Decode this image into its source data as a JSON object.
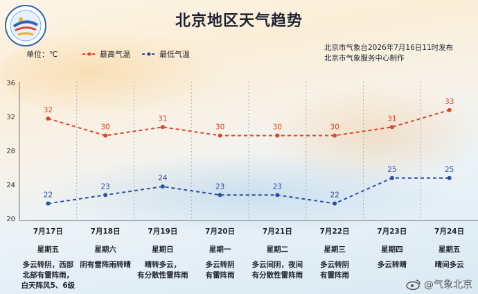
{
  "title": "北京地区天气趋势",
  "unit_label": "单位：℃",
  "legend": {
    "high": "最高气温",
    "low": "最低气温"
  },
  "publisher": {
    "line1": "北京市气象台2026年7月16日11时发布",
    "line2": "北京市气象服务中心制作"
  },
  "watermark": "@气象北京",
  "colors": {
    "high": "#e0452a",
    "low": "#2d4fa3"
  },
  "chart_data": {
    "type": "line",
    "title": "北京地区天气趋势",
    "ylabel": "单位：℃",
    "ylim": [
      20,
      36
    ],
    "yticks": [
      20,
      24,
      28,
      32,
      36
    ],
    "grid": false,
    "categories": [
      "7月17日",
      "7月18日",
      "7月19日",
      "7月20日",
      "7月21日",
      "7月22日",
      "7月23日",
      "7月24日"
    ],
    "weekdays": [
      "星期五",
      "星期六",
      "星期日",
      "星期一",
      "星期二",
      "星期三",
      "星期四",
      "星期五"
    ],
    "weather": [
      [
        "多云转阴，西部",
        "北部有雷阵雨，",
        "白天阵风5、6级"
      ],
      [
        "阴有雷阵雨转晴"
      ],
      [
        "晴转多云，",
        "有分散性雷阵雨"
      ],
      [
        "多云转阴",
        "有雷阵雨"
      ],
      [
        "多云间阴，夜间",
        "有分散性雷阵雨"
      ],
      [
        "多云转阴",
        "有雷阵雨"
      ],
      [
        "多云转晴"
      ],
      [
        "晴间多云"
      ]
    ],
    "series": [
      {
        "name": "最高气温",
        "values": [
          32,
          30,
          31,
          30,
          30,
          30,
          31,
          33
        ]
      },
      {
        "name": "最低气温",
        "values": [
          22,
          23,
          24,
          23,
          23,
          22,
          25,
          25
        ]
      }
    ]
  }
}
